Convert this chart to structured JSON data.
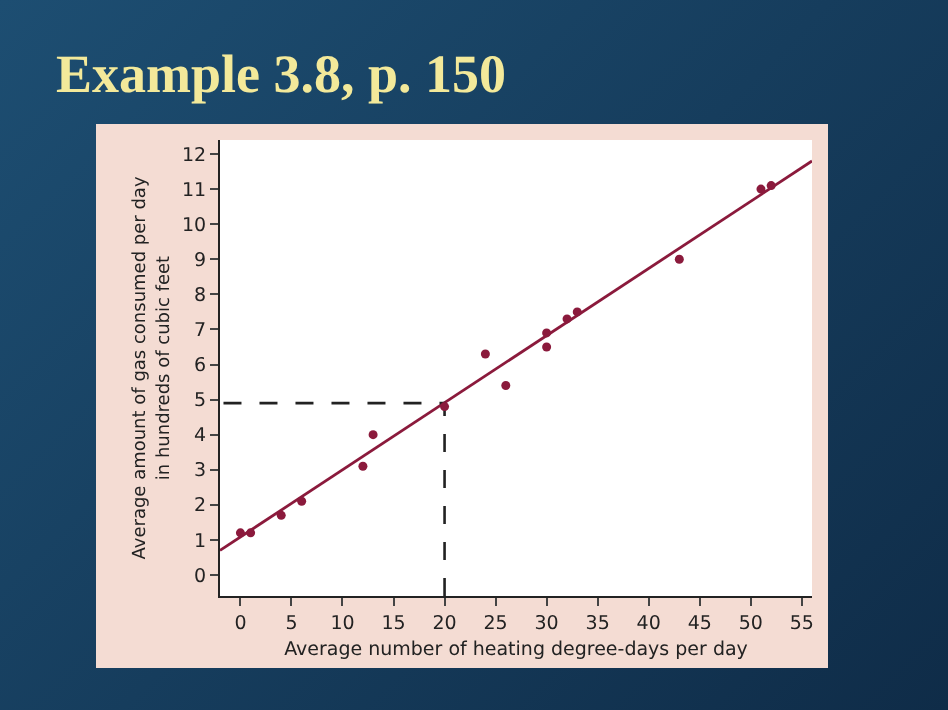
{
  "chart_data": {
    "type": "scatter",
    "title": "Example 3.8, p. 150",
    "xlabel": "Average number of heating degree-days per day",
    "ylabel": "Average amount of gas consumed per day\nin hundreds of cubic feet",
    "series": [
      {
        "color": "#8b1a3c",
        "marker": "circle",
        "x": [
          0,
          1,
          4,
          6,
          12,
          13,
          20,
          24,
          26,
          30,
          30,
          32,
          33,
          43,
          51,
          52
        ],
        "values": [
          1.2,
          1.2,
          1.7,
          2.1,
          3.1,
          4.0,
          4.8,
          6.3,
          5.4,
          6.9,
          6.5,
          7.3,
          7.5,
          9.0,
          11.0,
          11.1
        ]
      },
      {
        "type": "line",
        "color": "#8b1a3c",
        "line_style": "solid",
        "marker": "none",
        "x": [
          -2,
          56
        ],
        "values": [
          0.7,
          11.8
        ]
      },
      {
        "type": "line",
        "color": "#222222",
        "line_style": "dashed",
        "marker": "none",
        "x": [
          20,
          20,
          -2
        ],
        "values": [
          -0.6,
          4.9,
          4.9
        ]
      }
    ],
    "xlim": [
      -2,
      56
    ],
    "ylim": [
      -0.6,
      12.4
    ],
    "xticks": [
      0,
      5,
      10,
      15,
      20,
      25,
      30,
      35,
      40,
      45,
      50,
      55
    ],
    "yticks": [
      0,
      1,
      2,
      3,
      4,
      5,
      6,
      7,
      8,
      9,
      10,
      11,
      12
    ],
    "grid": false
  }
}
